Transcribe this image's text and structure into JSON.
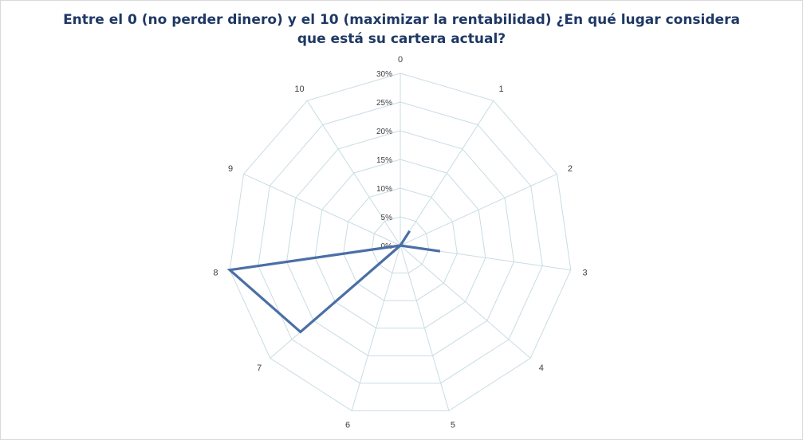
{
  "chart_data": {
    "type": "radar",
    "title_line1": "Entre el 0 (no perder dinero) y el 10 (maximizar la rentabilidad) ¿En qué lugar considera",
    "title_line2": "que está su cartera actual?",
    "categories": [
      "0",
      "1",
      "2",
      "3",
      "4",
      "5",
      "6",
      "7",
      "8",
      "9",
      "10"
    ],
    "series": [
      {
        "values": [
          0,
          3,
          0,
          7,
          0,
          0,
          0,
          23,
          30,
          0,
          0
        ]
      }
    ],
    "axis_ticks": [
      "0%",
      "5%",
      "10%",
      "15%",
      "20%",
      "25%",
      "30%"
    ],
    "axis_range": [
      0,
      30
    ],
    "colors": {
      "series": "#4a6fa5",
      "grid": "#c9dce3",
      "title": "#1f3864"
    }
  }
}
